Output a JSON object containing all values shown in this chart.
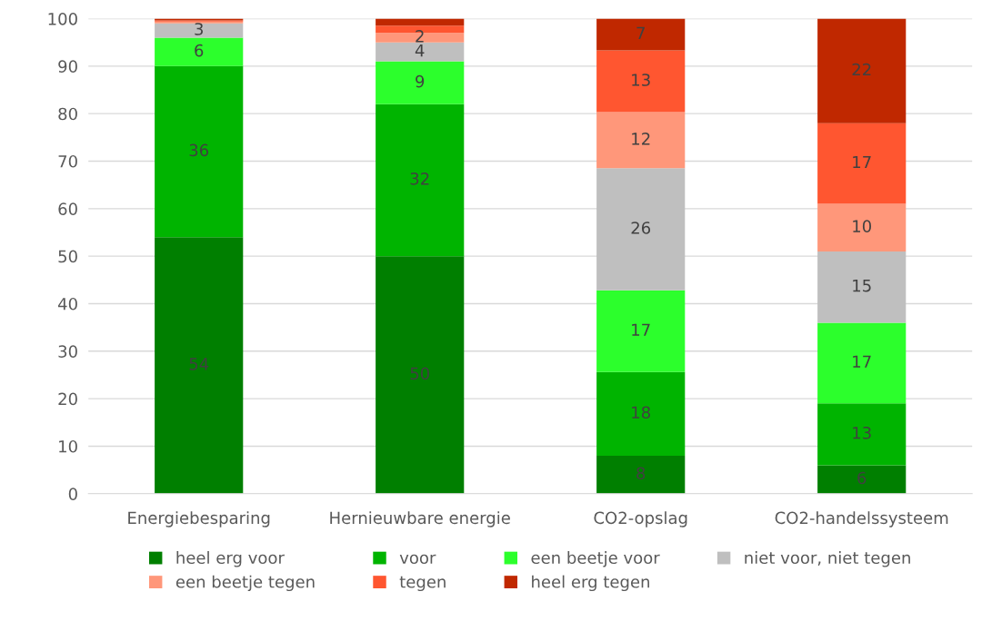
{
  "chart_data": {
    "type": "bar",
    "stacked": true,
    "categories": [
      "Energiebesparing",
      "Hernieuwbare energie",
      "CO2-opslag",
      "CO2-handelssysteem"
    ],
    "series": [
      {
        "name": "heel erg voor",
        "color": "#007f00",
        "values": [
          54,
          50,
          8,
          6
        ],
        "value_labels": [
          "54",
          "50",
          "8",
          "6"
        ]
      },
      {
        "name": "voor",
        "color": "#00b400",
        "values": [
          36,
          32,
          17.6,
          13
        ],
        "value_labels": [
          "36",
          "32",
          "18",
          "13"
        ]
      },
      {
        "name": "een beetje voor",
        "color": "#2cff2c",
        "values": [
          6,
          9,
          17.2,
          17
        ],
        "value_labels": [
          "6",
          "9",
          "17",
          "17"
        ]
      },
      {
        "name": "niet voor, niet tegen",
        "color": "#bfbfbf",
        "values": [
          3,
          4,
          25.7,
          15
        ],
        "value_labels": [
          "3",
          "4",
          "26",
          "15"
        ]
      },
      {
        "name": "een beetje tegen",
        "color": "#ff977a",
        "values": [
          0.4,
          2,
          11.8,
          10
        ],
        "value_labels": [
          null,
          "2",
          "12",
          "10"
        ]
      },
      {
        "name": "tegen",
        "color": "#ff5630",
        "values": [
          0.2,
          1.5,
          13,
          17
        ],
        "value_labels": [
          null,
          null,
          "13",
          "17"
        ]
      },
      {
        "name": "heel erg tegen",
        "color": "#c02800",
        "values": [
          0.4,
          1.5,
          6.7,
          22
        ],
        "value_labels": [
          null,
          null,
          "7",
          "22"
        ]
      }
    ],
    "ylim": [
      0,
      100
    ],
    "yticks": [
      0,
      10,
      20,
      30,
      40,
      50,
      60,
      70,
      80,
      90,
      100
    ],
    "grid": "y",
    "legend": "bottom"
  }
}
